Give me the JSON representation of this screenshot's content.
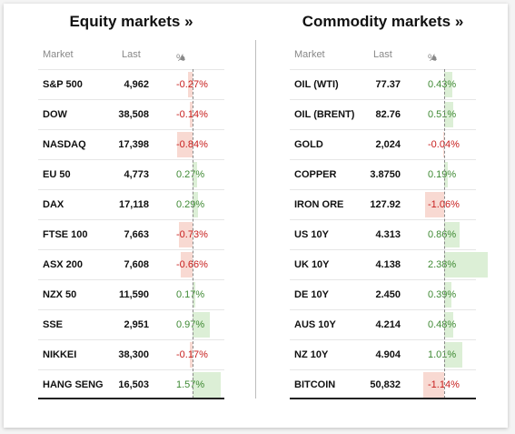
{
  "equity": {
    "title": "Equity markets »",
    "headers": {
      "market": "Market",
      "last": "Last",
      "pct": "%",
      "sort": "▲"
    },
    "rows": [
      {
        "name": "S&P 500",
        "last": "4,962",
        "pct": "-0.27%",
        "value": -0.27
      },
      {
        "name": "DOW",
        "last": "38,508",
        "pct": "-0.14%",
        "value": -0.14
      },
      {
        "name": "NASDAQ",
        "last": "17,398",
        "pct": "-0.84%",
        "value": -0.84
      },
      {
        "name": "EU 50",
        "last": "4,773",
        "pct": "0.27%",
        "value": 0.27
      },
      {
        "name": "DAX",
        "last": "17,118",
        "pct": "0.29%",
        "value": 0.29
      },
      {
        "name": "FTSE 100",
        "last": "7,663",
        "pct": "-0.73%",
        "value": -0.73
      },
      {
        "name": "ASX 200",
        "last": "7,608",
        "pct": "-0.66%",
        "value": -0.66
      },
      {
        "name": "NZX 50",
        "last": "11,590",
        "pct": "0.17%",
        "value": 0.17
      },
      {
        "name": "SSE",
        "last": "2,951",
        "pct": "0.97%",
        "value": 0.97
      },
      {
        "name": "NIKKEI",
        "last": "38,300",
        "pct": "-0.17%",
        "value": -0.17
      },
      {
        "name": "HANG SENG",
        "last": "16,503",
        "pct": "1.57%",
        "value": 1.57
      }
    ]
  },
  "commodity": {
    "title": "Commodity markets »",
    "headers": {
      "market": "Market",
      "last": "Last",
      "pct": "%",
      "sort": "▲"
    },
    "rows": [
      {
        "name": "OIL (WTI)",
        "last": "77.37",
        "pct": "0.43%",
        "value": 0.43
      },
      {
        "name": "OIL (BRENT)",
        "last": "82.76",
        "pct": "0.51%",
        "value": 0.51
      },
      {
        "name": "GOLD",
        "last": "2,024",
        "pct": "-0.04%",
        "value": -0.04
      },
      {
        "name": "COPPER",
        "last": "3.8750",
        "pct": "0.19%",
        "value": 0.19
      },
      {
        "name": "IRON ORE",
        "last": "127.92",
        "pct": "-1.06%",
        "value": -1.06
      },
      {
        "name": "US 10Y",
        "last": "4.313",
        "pct": "0.86%",
        "value": 0.86
      },
      {
        "name": "UK 10Y",
        "last": "4.138",
        "pct": "2.38%",
        "value": 2.38
      },
      {
        "name": "DE 10Y",
        "last": "2.450",
        "pct": "0.39%",
        "value": 0.39
      },
      {
        "name": "AUS 10Y",
        "last": "4.214",
        "pct": "0.48%",
        "value": 0.48
      },
      {
        "name": "NZ 10Y",
        "last": "4.904",
        "pct": "1.01%",
        "value": 1.01
      },
      {
        "name": "BITCOIN",
        "last": "50,832",
        "pct": "-1.14%",
        "value": -1.14
      }
    ]
  },
  "colors": {
    "positive": "#3f8a34",
    "negative": "#c8201f",
    "positive_bar": "#dcefd6",
    "negative_bar": "#f8d9d2"
  }
}
